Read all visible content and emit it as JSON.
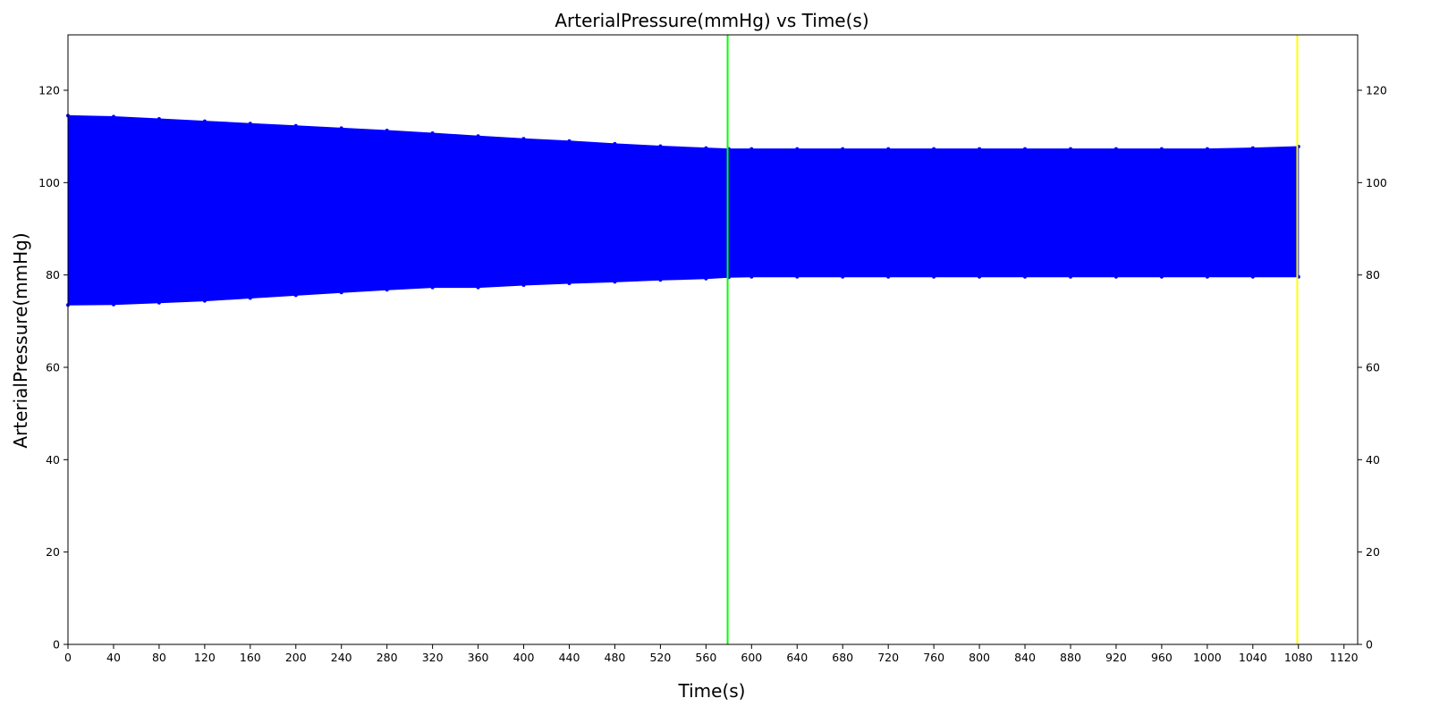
{
  "chart_data": {
    "type": "area",
    "title": "ArterialPressure(mmHg) vs Time(s)",
    "xlabel": "Time(s)",
    "ylabel": "ArterialPressure(mmHg)",
    "xlim": [
      0,
      1132
    ],
    "ylim": [
      0,
      132
    ],
    "x_ticks": [
      0,
      40,
      80,
      120,
      160,
      200,
      240,
      280,
      320,
      360,
      400,
      440,
      480,
      520,
      560,
      600,
      640,
      680,
      720,
      760,
      800,
      840,
      880,
      920,
      960,
      1000,
      1040,
      1080,
      1120
    ],
    "y_ticks": [
      0,
      20,
      40,
      60,
      80,
      100,
      120
    ],
    "grid": false,
    "right_y_axis_mirrored": true,
    "series": [
      {
        "color": "#0000ff",
        "description_of_envelope": "oscillating pressure signal shown as filled band between diastolic (lower) and systolic (upper) envelopes",
        "x": [
          0,
          40,
          80,
          120,
          160,
          200,
          240,
          280,
          320,
          360,
          400,
          440,
          480,
          520,
          560,
          580,
          600,
          640,
          680,
          720,
          760,
          800,
          840,
          880,
          920,
          960,
          1000,
          1040,
          1080
        ],
        "upper": [
          114.5,
          114.3,
          113.8,
          113.3,
          112.8,
          112.3,
          111.8,
          111.3,
          110.7,
          110.1,
          109.5,
          109.0,
          108.4,
          107.9,
          107.5,
          107.3,
          107.3,
          107.3,
          107.3,
          107.3,
          107.3,
          107.3,
          107.3,
          107.3,
          107.3,
          107.3,
          107.3,
          107.5,
          107.8
        ],
        "lower": [
          73.5,
          73.6,
          74.0,
          74.4,
          75.0,
          75.6,
          76.2,
          76.8,
          77.3,
          77.3,
          77.8,
          78.2,
          78.5,
          78.9,
          79.2,
          79.5,
          79.6,
          79.6,
          79.6,
          79.6,
          79.6,
          79.6,
          79.6,
          79.6,
          79.6,
          79.6,
          79.6,
          79.6,
          79.6
        ]
      }
    ],
    "vertical_lines": [
      {
        "x": 579,
        "color": "#00ff00"
      },
      {
        "x": 1079,
        "color": "#ffff00"
      }
    ]
  }
}
